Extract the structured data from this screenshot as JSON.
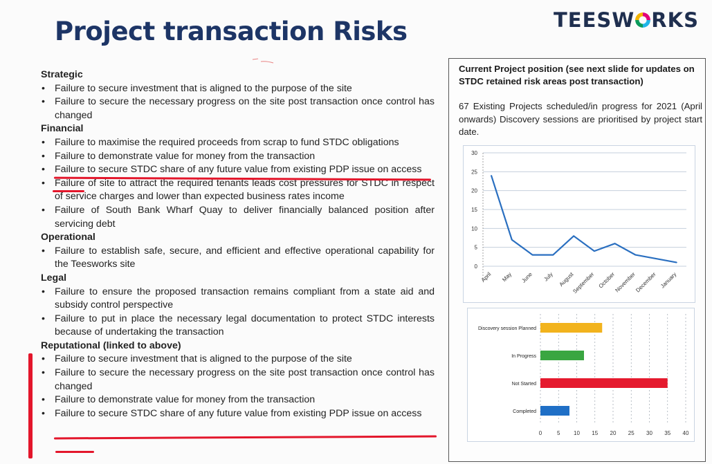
{
  "page": {
    "title": "Project transaction Risks",
    "logo_text_1": "TEESW",
    "logo_text_2": "RKS"
  },
  "risks": {
    "strategic": {
      "heading": "Strategic",
      "items": [
        "Failure to secure investment that is aligned to the purpose of the site",
        "Failure to secure the necessary progress on the site post transaction once control has changed"
      ]
    },
    "financial": {
      "heading": "Financial",
      "items": [
        "Failure to maximise the required proceeds from scrap to fund STDC obligations",
        "Failure to demonstrate value for money from the transaction",
        "Failure to secure STDC share of any future value from existing PDP issue on access",
        "Failure of site to attract the required tenants leads cost pressures for STDC in respect of service charges and lower than expected business rates income",
        "Failure of South Bank Wharf Quay to deliver financially balanced position after servicing debt"
      ]
    },
    "operational": {
      "heading": "Operational",
      "items": [
        "Failure to establish safe, secure, and efficient and effective operational capability for the Teesworks site"
      ]
    },
    "legal": {
      "heading": "Legal",
      "items": [
        "Failure to ensure the proposed transaction remains compliant from a state aid and subsidy control perspective",
        "Failure to put in place the necessary legal documentation to protect STDC interests because of undertaking the transaction"
      ]
    },
    "reputational": {
      "heading": "Reputational (linked to above)",
      "items": [
        "Failure to secure investment that is aligned to the purpose of the site",
        "Failure to secure the necessary progress on the site post transaction once control has changed",
        "Failure to demonstrate value for money from the transaction",
        "Failure to secure STDC share of any future value from existing PDP issue on access"
      ]
    }
  },
  "panel": {
    "heading": "Current Project position (see next slide for updates on STDC retained risk areas post transaction)",
    "text": "67 Existing Projects scheduled/in progress for 2021 (April onwards) Discovery sessions are prioritised by project start date."
  },
  "colors": {
    "title": "#1d3566",
    "line_series": "#2a6fc0",
    "annotation_red": "#e3162b",
    "bar_planned": "#f2b31d",
    "bar_in_progress": "#3aa641",
    "bar_not_started": "#e51a2e",
    "bar_completed": "#1f6fc6"
  },
  "chart_data": [
    {
      "type": "line",
      "categories": [
        "April",
        "May",
        "June",
        "July",
        "August",
        "September",
        "October",
        "November",
        "December",
        "January"
      ],
      "values": [
        24,
        7,
        3,
        3,
        8,
        4,
        6,
        3,
        2,
        1
      ],
      "yticks": [
        0,
        5,
        10,
        15,
        20,
        25,
        30
      ],
      "ylim": [
        0,
        30
      ],
      "grid": true,
      "legend": "none"
    },
    {
      "type": "bar",
      "orientation": "horizontal",
      "categories": [
        "Discovery session Planned",
        "In Progress",
        "Not Started",
        "Completed"
      ],
      "values": [
        17,
        12,
        35,
        8
      ],
      "xticks": [
        0,
        5,
        10,
        15,
        20,
        25,
        30,
        35,
        40
      ],
      "xlim": [
        0,
        40
      ],
      "grid": true,
      "legend": "none"
    }
  ]
}
